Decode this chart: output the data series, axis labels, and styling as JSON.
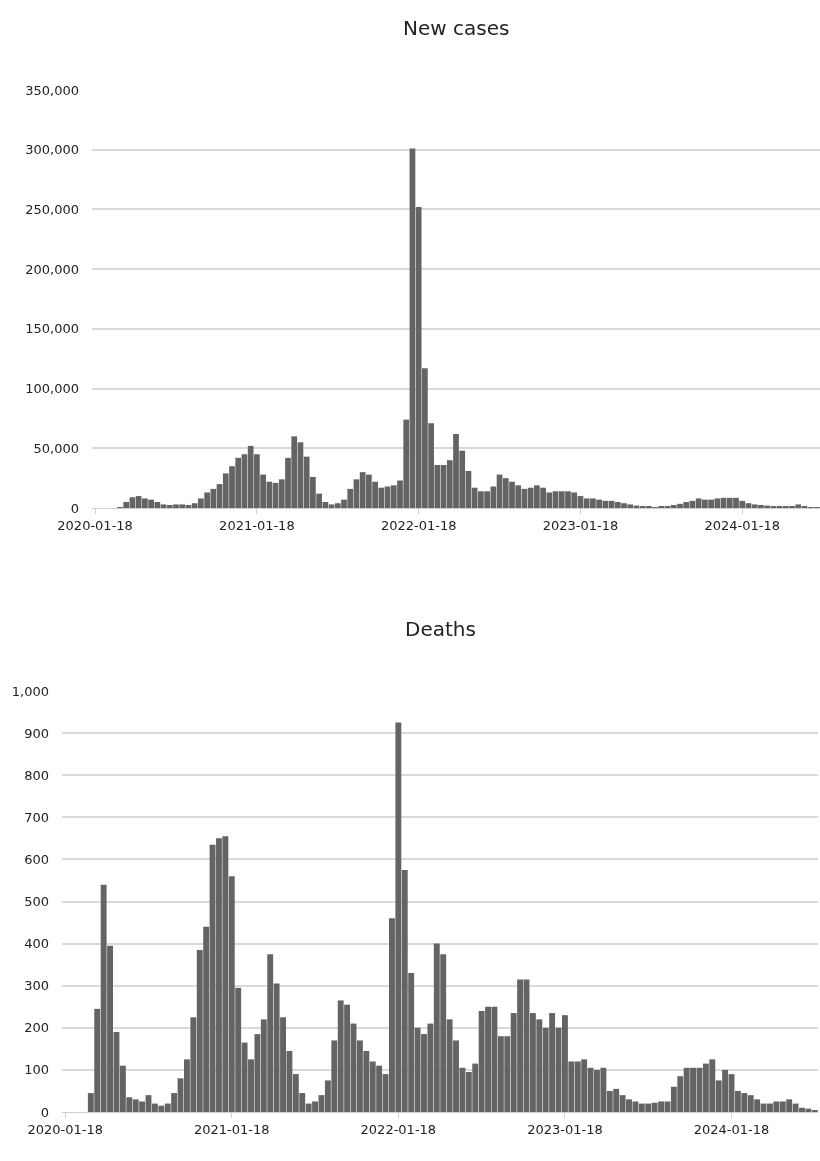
{
  "chart_data": [
    {
      "type": "bar",
      "title": "New cases",
      "color": "#646466",
      "grid": "y",
      "categories": [
        "2020-01-18",
        null,
        null,
        null,
        null,
        null,
        null,
        null,
        null,
        null,
        null,
        null,
        null,
        null,
        null,
        null,
        null,
        null,
        null,
        null,
        null,
        null,
        null,
        null,
        null,
        null,
        "2021-01-18",
        null,
        null,
        null,
        null,
        null,
        null,
        null,
        null,
        null,
        null,
        null,
        null,
        null,
        null,
        null,
        null,
        null,
        null,
        null,
        null,
        null,
        null,
        null,
        null,
        null,
        "2022-01-18",
        null,
        null,
        null,
        null,
        null,
        null,
        null,
        null,
        null,
        null,
        null,
        null,
        null,
        null,
        null,
        null,
        null,
        null,
        null,
        null,
        null,
        null,
        null,
        null,
        null,
        "2023-01-18",
        null,
        null,
        null,
        null,
        null,
        null,
        null,
        null,
        null,
        null,
        null,
        null,
        null,
        null,
        null,
        null,
        null,
        null,
        null,
        null,
        null,
        null,
        null,
        null,
        null,
        "2024-01-18",
        null,
        null,
        null,
        null,
        null,
        null,
        null,
        null,
        null,
        null,
        null,
        null
      ],
      "values": [
        0,
        0,
        0,
        0,
        500,
        5000,
        9000,
        10000,
        8000,
        7000,
        5000,
        3000,
        2500,
        3000,
        3000,
        2500,
        4000,
        8000,
        13000,
        16000,
        20000,
        29000,
        35000,
        42000,
        45000,
        52000,
        45000,
        28000,
        22000,
        21000,
        24000,
        42000,
        60000,
        55000,
        43000,
        26000,
        12000,
        5000,
        3000,
        4000,
        7000,
        16000,
        24000,
        30000,
        28000,
        22000,
        17000,
        18000,
        19000,
        23000,
        74000,
        301000,
        252000,
        117000,
        71000,
        36000,
        36000,
        40000,
        62000,
        48000,
        31000,
        17000,
        14000,
        14000,
        18000,
        28000,
        25000,
        22000,
        19000,
        16000,
        17000,
        19000,
        17000,
        13000,
        14000,
        14000,
        14000,
        13000,
        10000,
        8000,
        8000,
        7000,
        6000,
        6000,
        5000,
        4000,
        3000,
        2000,
        1500,
        1000,
        300,
        1000,
        1500,
        2500,
        3500,
        5000,
        6000,
        8000,
        7000,
        7000,
        8000,
        8500,
        8500,
        8500,
        6000,
        4000,
        3000,
        2500,
        2000,
        1500,
        1500,
        1500,
        1500,
        3000,
        1500,
        800,
        500
      ],
      "ylim": [
        0,
        350000
      ],
      "yticks": [
        0,
        {
          "value": 50000,
          "label": "50,000"
        },
        {
          "value": 100000,
          "label": "100,000"
        },
        {
          "value": 150000,
          "label": "150,000"
        },
        {
          "value": 200000,
          "label": "200,000"
        },
        {
          "value": 250000,
          "label": "250,000"
        },
        {
          "value": 300000,
          "label": "300,000"
        },
        {
          "value": 350000,
          "label": "350,000"
        }
      ]
    },
    {
      "type": "bar",
      "title": "Deaths",
      "color": "#646466",
      "grid": "y",
      "categories": [
        "2020-01-18",
        null,
        null,
        null,
        null,
        null,
        null,
        null,
        null,
        null,
        null,
        null,
        null,
        null,
        null,
        null,
        null,
        null,
        null,
        null,
        null,
        null,
        null,
        null,
        null,
        null,
        "2021-01-18",
        null,
        null,
        null,
        null,
        null,
        null,
        null,
        null,
        null,
        null,
        null,
        null,
        null,
        null,
        null,
        null,
        null,
        null,
        null,
        null,
        null,
        null,
        null,
        null,
        null,
        "2022-01-18",
        null,
        null,
        null,
        null,
        null,
        null,
        null,
        null,
        null,
        null,
        null,
        null,
        null,
        null,
        null,
        null,
        null,
        null,
        null,
        null,
        null,
        null,
        null,
        null,
        null,
        "2023-01-18",
        null,
        null,
        null,
        null,
        null,
        null,
        null,
        null,
        null,
        null,
        null,
        null,
        null,
        null,
        null,
        null,
        null,
        null,
        null,
        null,
        null,
        null,
        null,
        null,
        null,
        "2024-01-18",
        null,
        null,
        null,
        null,
        null,
        null,
        null,
        null,
        null,
        null,
        null,
        null,
        null
      ],
      "values": [
        0,
        0,
        0,
        0,
        45,
        245,
        540,
        395,
        190,
        110,
        35,
        30,
        25,
        40,
        20,
        15,
        20,
        45,
        80,
        125,
        225,
        385,
        440,
        635,
        650,
        655,
        560,
        295,
        165,
        125,
        185,
        220,
        375,
        305,
        225,
        145,
        90,
        45,
        20,
        25,
        40,
        75,
        170,
        265,
        255,
        210,
        170,
        145,
        120,
        110,
        90,
        460,
        925,
        575,
        330,
        200,
        185,
        210,
        400,
        375,
        220,
        170,
        105,
        95,
        115,
        240,
        250,
        250,
        180,
        180,
        235,
        315,
        315,
        235,
        220,
        200,
        235,
        200,
        230,
        120,
        120,
        125,
        105,
        100,
        105,
        50,
        55,
        40,
        30,
        25,
        20,
        20,
        22,
        25,
        25,
        60,
        85,
        105,
        105,
        105,
        115,
        125,
        75,
        100,
        90,
        50,
        45,
        40,
        30,
        20,
        20,
        25,
        25,
        30,
        20,
        10,
        8,
        4
      ],
      "ylim": [
        0,
        1000
      ],
      "yticks": [
        0,
        100,
        200,
        300,
        400,
        500,
        600,
        700,
        800,
        900,
        {
          "value": 1000,
          "label": "1,000"
        }
      ]
    }
  ]
}
